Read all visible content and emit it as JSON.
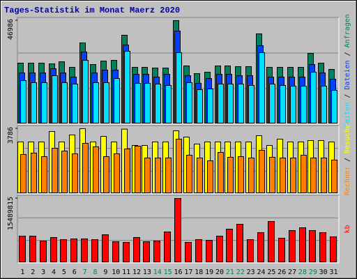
{
  "title": "Tages-Statistik im Monat Maerz 2020",
  "legend_separator": " / ",
  "chart_data": [
    {
      "type": "bar",
      "ylim": [
        0,
        46986
      ],
      "yticks": [
        46986
      ],
      "series": [
        {
          "name": "Anfragen",
          "color": "#00805c",
          "values": [
            27490,
            27490,
            27490,
            27170,
            28130,
            25570,
            36760,
            26850,
            28450,
            28770,
            40280,
            25570,
            25570,
            25250,
            25250,
            46986,
            26210,
            22690,
            23330,
            26210,
            26210,
            25890,
            25890,
            40910,
            25570,
            25570,
            25570,
            25570,
            31960,
            27490,
            24610
          ]
        },
        {
          "name": "Dateien",
          "color": "#0040ff",
          "values": [
            23010,
            23010,
            23010,
            24930,
            23010,
            21090,
            32600,
            23010,
            24290,
            24290,
            35800,
            22370,
            22370,
            21090,
            22370,
            42190,
            21730,
            18220,
            20450,
            22370,
            22370,
            21730,
            21730,
            35480,
            21090,
            21090,
            21090,
            21090,
            26850,
            23010,
            20130
          ]
        },
        {
          "name": "Seiten",
          "color": "#00e0ff",
          "values": [
            19500,
            18540,
            18540,
            21730,
            18540,
            17900,
            28760,
            18540,
            18540,
            20450,
            32920,
            18220,
            18220,
            17900,
            17260,
            32280,
            18540,
            15340,
            15660,
            17900,
            17900,
            17900,
            17260,
            32280,
            17900,
            17260,
            16940,
            16940,
            23330,
            16940,
            15020
          ]
        }
      ]
    },
    {
      "type": "bar",
      "ylim": [
        0,
        3786
      ],
      "yticks": [
        3786
      ],
      "series": [
        {
          "name": "Besuche",
          "color": "#ffff00",
          "values": [
            3004,
            3004,
            3004,
            3621,
            3004,
            3415,
            3786,
            3004,
            3333,
            3004,
            3760,
            2798,
            2798,
            3004,
            3004,
            3662,
            3292,
            2880,
            3004,
            3004,
            3004,
            3004,
            3004,
            3374,
            2798,
            3168,
            3004,
            3004,
            3086,
            3086,
            3004
          ]
        },
        {
          "name": "Rechner",
          "color": "#ff8000",
          "values": [
            2263,
            2346,
            2140,
            2634,
            2469,
            2304,
            2922,
            2716,
            2140,
            2304,
            2592,
            2757,
            2058,
            2058,
            2058,
            3169,
            2222,
            2058,
            1893,
            2387,
            2099,
            2140,
            2058,
            2510,
            2099,
            2058,
            2058,
            2222,
            2058,
            2058,
            1934
          ]
        }
      ]
    },
    {
      "type": "bar",
      "ylim": [
        0,
        15489815
      ],
      "yticks": [
        15489815
      ],
      "categories": [
        "1",
        "2",
        "3",
        "4",
        "5",
        "6",
        "7",
        "8",
        "9",
        "10",
        "11",
        "12",
        "13",
        "14",
        "15",
        "16",
        "17",
        "18",
        "19",
        "20",
        "21",
        "22",
        "23",
        "24",
        "25",
        "26",
        "27",
        "28",
        "29",
        "30",
        "31"
      ],
      "label_colors": [
        "#000000",
        "#000000",
        "#000000",
        "#000000",
        "#000000",
        "#000000",
        "#00805c",
        "#00805c",
        "#000000",
        "#000000",
        "#000000",
        "#000000",
        "#000000",
        "#00805c",
        "#00805c",
        "#000000",
        "#000000",
        "#000000",
        "#000000",
        "#000000",
        "#00805c",
        "#00805c",
        "#000000",
        "#000000",
        "#000000",
        "#000000",
        "#000000",
        "#00805c",
        "#00805c",
        "#000000",
        "#000000"
      ],
      "series": [
        {
          "name": "kb",
          "color": "#ff0000",
          "values": [
            6298000,
            6298000,
            5107000,
            5958000,
            5447000,
            5617000,
            5617000,
            5447000,
            6639000,
            4936000,
            4766000,
            5958000,
            4936000,
            5107000,
            7319000,
            15489815,
            4766000,
            5447000,
            5277000,
            6298000,
            8000000,
            9192000,
            5447000,
            7149000,
            9873000,
            5787000,
            7660000,
            8341000,
            7660000,
            7149000,
            6128000
          ]
        }
      ]
    }
  ]
}
